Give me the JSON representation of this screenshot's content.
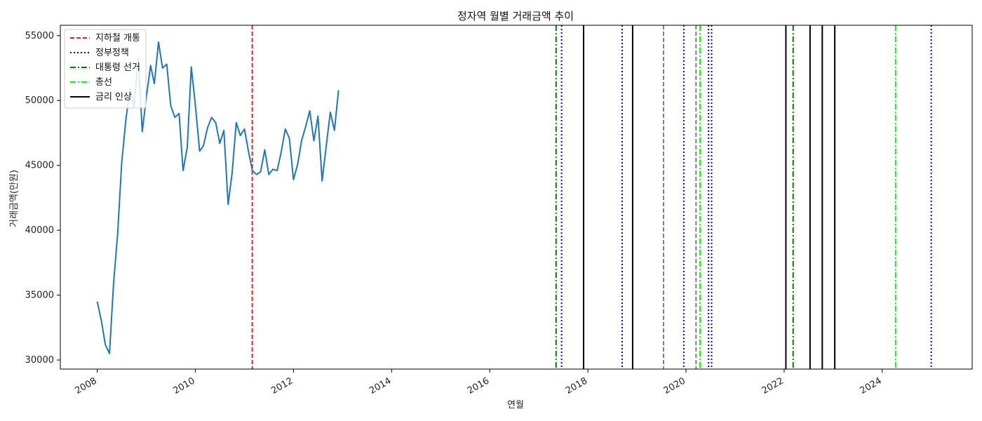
{
  "chart_data": {
    "type": "line",
    "title": "정자역 월별 거래금액 추이",
    "xlabel": "연월",
    "ylabel": "거래금액(만원)",
    "xlim": [
      "2007-04-01",
      "2025-11-01"
    ],
    "ylim": [
      29300,
      55800
    ],
    "x_ticks": [
      "2008",
      "2010",
      "2012",
      "2014",
      "2016",
      "2018",
      "2020",
      "2022",
      "2024"
    ],
    "y_ticks": [
      30000,
      35000,
      40000,
      45000,
      50000,
      55000
    ],
    "grid": false,
    "legend_position": "top-left",
    "series": [
      {
        "color": "#1f77b4",
        "points": [
          [
            "2008-01",
            34500
          ],
          [
            "2008-02",
            33000
          ],
          [
            "2008-03",
            31200
          ],
          [
            "2008-04",
            30500
          ],
          [
            "2008-05",
            35800
          ],
          [
            "2008-06",
            39800
          ],
          [
            "2008-07",
            45200
          ],
          [
            "2008-08",
            48500
          ],
          [
            "2008-09",
            50900
          ],
          [
            "2008-10",
            49500
          ],
          [
            "2008-11",
            53300
          ],
          [
            "2008-12",
            47600
          ],
          [
            "2009-01",
            50300
          ],
          [
            "2009-02",
            52700
          ],
          [
            "2009-03",
            51300
          ],
          [
            "2009-04",
            54500
          ],
          [
            "2009-05",
            52500
          ],
          [
            "2009-06",
            52800
          ],
          [
            "2009-07",
            49600
          ],
          [
            "2009-08",
            48700
          ],
          [
            "2009-09",
            49000
          ],
          [
            "2009-10",
            44600
          ],
          [
            "2009-11",
            46400
          ],
          [
            "2009-12",
            52600
          ],
          [
            "2010-01",
            49600
          ],
          [
            "2010-02",
            46100
          ],
          [
            "2010-03",
            46500
          ],
          [
            "2010-04",
            47900
          ],
          [
            "2010-05",
            48700
          ],
          [
            "2010-06",
            48300
          ],
          [
            "2010-07",
            46700
          ],
          [
            "2010-08",
            47700
          ],
          [
            "2010-09",
            42000
          ],
          [
            "2010-10",
            44400
          ],
          [
            "2010-11",
            48300
          ],
          [
            "2010-12",
            47300
          ],
          [
            "2011-01",
            47800
          ],
          [
            "2011-02",
            46000
          ],
          [
            "2011-03",
            44600
          ],
          [
            "2011-04",
            44300
          ],
          [
            "2011-05",
            44500
          ],
          [
            "2011-06",
            46200
          ],
          [
            "2011-07",
            44300
          ],
          [
            "2011-08",
            44700
          ],
          [
            "2011-09",
            44600
          ],
          [
            "2011-10",
            46000
          ],
          [
            "2011-11",
            47800
          ],
          [
            "2011-12",
            47100
          ],
          [
            "2012-01",
            43900
          ],
          [
            "2012-02",
            45100
          ],
          [
            "2012-03",
            46900
          ],
          [
            "2012-04",
            48000
          ],
          [
            "2012-05",
            49200
          ],
          [
            "2012-06",
            46900
          ],
          [
            "2012-07",
            48800
          ],
          [
            "2012-08",
            43800
          ],
          [
            "2012-09",
            46500
          ],
          [
            "2012-10",
            49100
          ],
          [
            "2012-11",
            47700
          ],
          [
            "2012-12",
            50800
          ]
        ]
      }
    ],
    "event_lines": [
      {
        "date": "2011-02-28",
        "style": "dashed",
        "color": "#d62728"
      },
      {
        "date": "2017-05-09",
        "style": "dashdot",
        "color": "#008000"
      },
      {
        "date": "2017-06-19",
        "style": "dotted",
        "color": "#0000ff"
      },
      {
        "date": "2017-11-30",
        "style": "solid",
        "color": "#000000"
      },
      {
        "date": "2018-09-13",
        "style": "dotted",
        "color": "#0000ff"
      },
      {
        "date": "2018-11-30",
        "style": "solid",
        "color": "#000000"
      },
      {
        "date": "2019-07-18",
        "style": "dashed",
        "color": "#808080"
      },
      {
        "date": "2019-12-16",
        "style": "dotted",
        "color": "#0000ff"
      },
      {
        "date": "2020-03-16",
        "style": "dashed",
        "color": "#808080"
      },
      {
        "date": "2020-04-15",
        "style": "dashdot",
        "color": "#00ff00"
      },
      {
        "date": "2020-06-17",
        "style": "dotted",
        "color": "#0000ff"
      },
      {
        "date": "2020-07-10",
        "style": "dotted",
        "color": "#0000ff"
      },
      {
        "date": "2022-01-14",
        "style": "solid",
        "color": "#000000"
      },
      {
        "date": "2022-03-09",
        "style": "dashdot",
        "color": "#008000"
      },
      {
        "date": "2022-07-13",
        "style": "solid",
        "color": "#000000"
      },
      {
        "date": "2022-10-12",
        "style": "solid",
        "color": "#000000"
      },
      {
        "date": "2023-01-13",
        "style": "solid",
        "color": "#000000"
      },
      {
        "date": "2024-04-10",
        "style": "dashdot",
        "color": "#00ff00"
      },
      {
        "date": "2024-12-31",
        "style": "dotted",
        "color": "#0000ff"
      }
    ],
    "legend": [
      {
        "label": "지하철 개통",
        "style": "dashed",
        "color": "#d62728"
      },
      {
        "label": "정부정책",
        "style": "dotted",
        "color": "#0000ff"
      },
      {
        "label": "대통령 선거",
        "style": "dashdot",
        "color": "#008000"
      },
      {
        "label": "총선",
        "style": "dashdot",
        "color": "#00ff00"
      },
      {
        "label": "금리 인상",
        "style": "solid",
        "color": "#000000"
      }
    ]
  }
}
